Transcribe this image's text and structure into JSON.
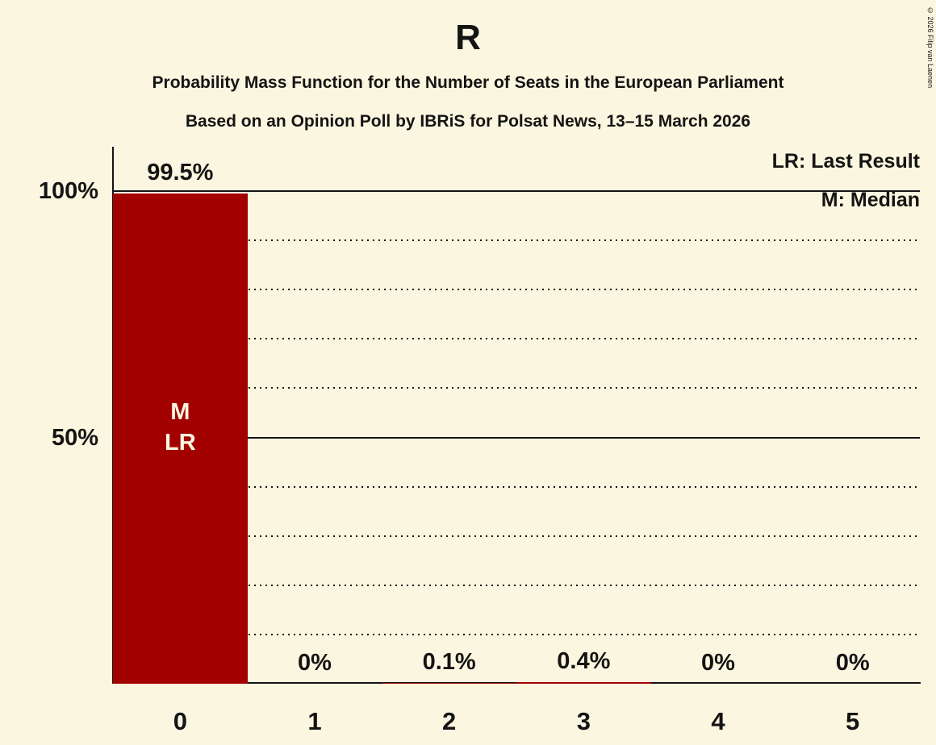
{
  "copyright": "© 2026 Filip van Laenen",
  "chart_data": {
    "type": "bar",
    "title": "R",
    "subtitles": [
      "Probability Mass Function for the Number of Seats in the European Parliament",
      "Based on an Opinion Poll by IBRiS for Polsat News, 13–15 March 2026"
    ],
    "categories": [
      "0",
      "1",
      "2",
      "3",
      "4",
      "5"
    ],
    "values": [
      99.5,
      0,
      0.1,
      0.4,
      0,
      0
    ],
    "value_labels": [
      "99.5%",
      "0%",
      "0.1%",
      "0.4%",
      "0%",
      "0%"
    ],
    "legend": [
      "LR: Last Result",
      "M: Median"
    ],
    "bar_annotations": [
      {
        "index": 0,
        "lines": [
          "M",
          "LR"
        ]
      }
    ],
    "ylim": [
      0,
      100
    ],
    "y_ticks": [
      {
        "value": 100,
        "label": "100%"
      },
      {
        "value": 50,
        "label": "50%"
      }
    ],
    "minor_grid_step": 10,
    "grid_style": "dotted minor lines every 10%, solid lines at 50% and 100%",
    "legend_position": "top-right",
    "bar_color": "#a30000",
    "background_color": "#fbf6df",
    "text_color": "#141414"
  }
}
